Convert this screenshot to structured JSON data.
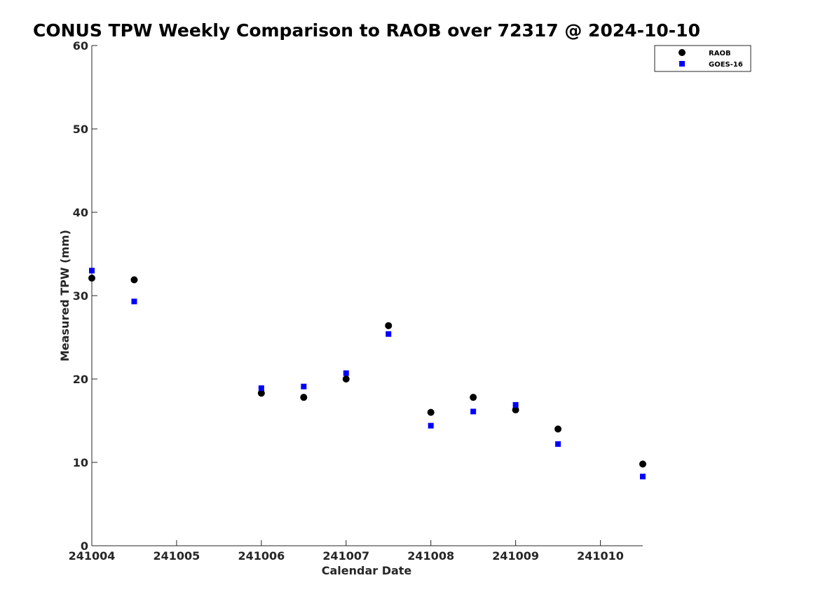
{
  "chart_data": {
    "type": "scatter",
    "title": "CONUS TPW Weekly Comparison to RAOB over 72317 @ 2024-10-10",
    "xlabel": "Calendar Date",
    "ylabel": "Measured TPW (mm)",
    "xlim": [
      241004,
      241010.5
    ],
    "ylim": [
      0,
      60
    ],
    "x_ticks": [
      241004,
      241005,
      241006,
      241007,
      241008,
      241009,
      241010
    ],
    "x_tick_labels": [
      "241004",
      "241005",
      "241006",
      "241007",
      "241008",
      "241009",
      "241010"
    ],
    "y_ticks": [
      0,
      10,
      20,
      30,
      40,
      50,
      60
    ],
    "y_tick_labels": [
      "0",
      "10",
      "20",
      "30",
      "40",
      "50",
      "60"
    ],
    "grid": false,
    "legend_position": "top-right",
    "series": [
      {
        "name": "RAOB",
        "marker": "circle",
        "color": "#000000",
        "x": [
          241004,
          241004.5,
          241006,
          241006.5,
          241007,
          241007.5,
          241008,
          241008.5,
          241009,
          241009.5,
          241010.5
        ],
        "y": [
          32.1,
          31.9,
          18.3,
          17.8,
          20.0,
          26.4,
          16.0,
          17.8,
          16.3,
          14.0,
          9.8
        ]
      },
      {
        "name": "GOES-16",
        "marker": "square",
        "color": "#0000ff",
        "x": [
          241004,
          241004.5,
          241006,
          241006.5,
          241007,
          241007.5,
          241008,
          241008.5,
          241009,
          241009.5,
          241010.5
        ],
        "y": [
          33.0,
          29.3,
          18.9,
          19.1,
          20.7,
          25.4,
          14.4,
          16.1,
          16.9,
          12.2,
          8.3
        ]
      }
    ]
  }
}
